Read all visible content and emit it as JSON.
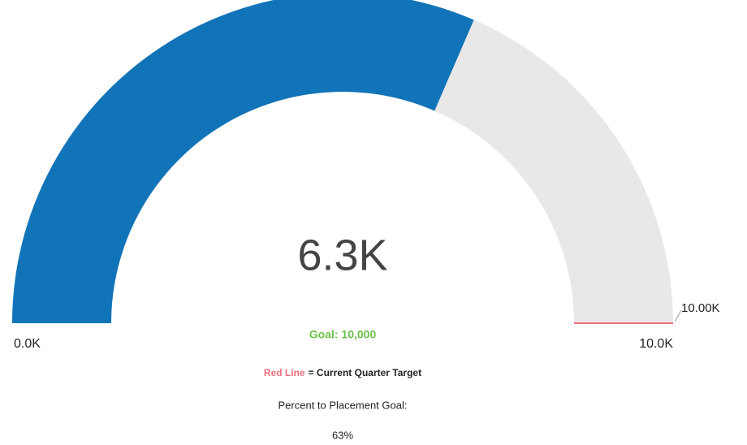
{
  "chart_data": {
    "type": "gauge",
    "values": [
      6300
    ],
    "value_labels": [
      "6.3K"
    ],
    "ylim": [
      0,
      10000
    ],
    "yticks": [
      {
        "value": 0,
        "label": "0.0K"
      },
      {
        "value": 10000,
        "label": "10.0K"
      }
    ],
    "target": 10000,
    "target_label": "10.00K",
    "color": "#1274b8",
    "track_color": "#e8e8e8",
    "target_color": "#f0707a",
    "goal_text": "Goal: 10,000",
    "legend_red": "Red Line",
    "legend_rest": "= Current Quarter Target",
    "percent_title": "Percent to Placement Goal:",
    "percent_text": "63%"
  }
}
